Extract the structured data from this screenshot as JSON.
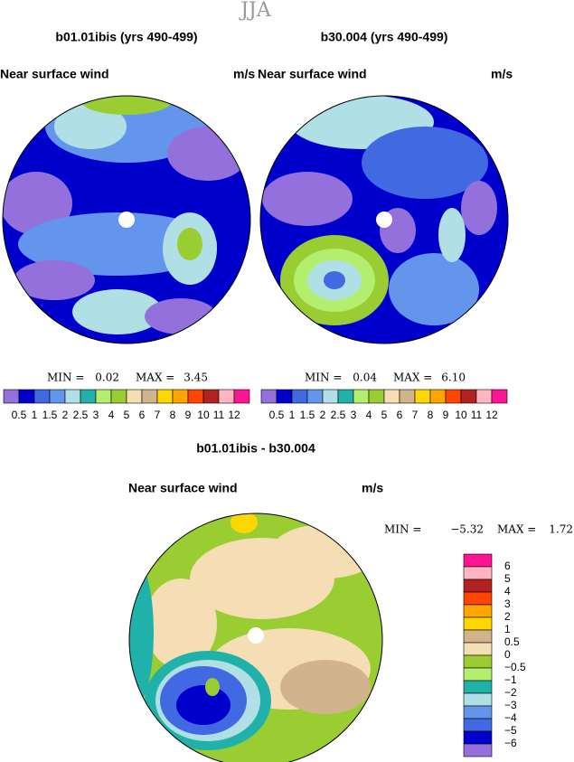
{
  "header": {
    "title": "JJA"
  },
  "panels": [
    {
      "title": "b01.01ibis (yrs 490-499)",
      "variable": "Near surface wind",
      "units": "m/s",
      "min_label": "MIN =",
      "min": "0.02",
      "max_label": "MAX =",
      "max": "3.45",
      "colorbar": {
        "labels": [
          "0.5",
          "1",
          "1.5",
          "2",
          "2.5",
          "3",
          "4",
          "5",
          "6",
          "7",
          "8",
          "9",
          "10",
          "11",
          "12"
        ],
        "colors": [
          "#9370db",
          "#0000cd",
          "#4169e1",
          "#6495ed",
          "#b0e0e6",
          "#20b2aa",
          "#b4ee6e",
          "#9acd32",
          "#f5deb3",
          "#d2b48c",
          "#ffd700",
          "#ffa500",
          "#ff4500",
          "#b22222",
          "#ffb6c1",
          "#ff1493"
        ]
      }
    },
    {
      "title": "b30.004 (yrs 490-499)",
      "variable": "Near surface wind",
      "units": "m/s",
      "min_label": "MIN =",
      "min": "0.04",
      "max_label": "MAX =",
      "max": "6.10",
      "colorbar": {
        "labels": [
          "0.5",
          "1",
          "1.5",
          "2",
          "2.5",
          "3",
          "4",
          "5",
          "6",
          "7",
          "8",
          "9",
          "10",
          "11",
          "12"
        ],
        "colors": [
          "#9370db",
          "#0000cd",
          "#4169e1",
          "#6495ed",
          "#b0e0e6",
          "#20b2aa",
          "#b4ee6e",
          "#9acd32",
          "#f5deb3",
          "#d2b48c",
          "#ffd700",
          "#ffa500",
          "#ff4500",
          "#b22222",
          "#ffb6c1",
          "#ff1493"
        ]
      }
    },
    {
      "title": "b01.01ibis - b30.004",
      "variable": "Near surface wind",
      "units": "m/s",
      "min_label": "MIN =",
      "min": "−5.32",
      "max_label": "MAX =",
      "max": "1.72",
      "colorbar": {
        "labels": [
          "6",
          "5",
          "4",
          "3",
          "2",
          "1",
          "0.5",
          "0",
          "−0.5",
          "−1",
          "−2",
          "−3",
          "−4",
          "−5",
          "−6"
        ],
        "colors": [
          "#ff1493",
          "#ffb6c1",
          "#b22222",
          "#ff4500",
          "#ffa500",
          "#ffd700",
          "#d2b48c",
          "#f5deb3",
          "#9acd32",
          "#b4ee6e",
          "#20b2aa",
          "#b0e0e6",
          "#6495ed",
          "#4169e1",
          "#0000cd",
          "#9370db"
        ]
      }
    }
  ]
}
